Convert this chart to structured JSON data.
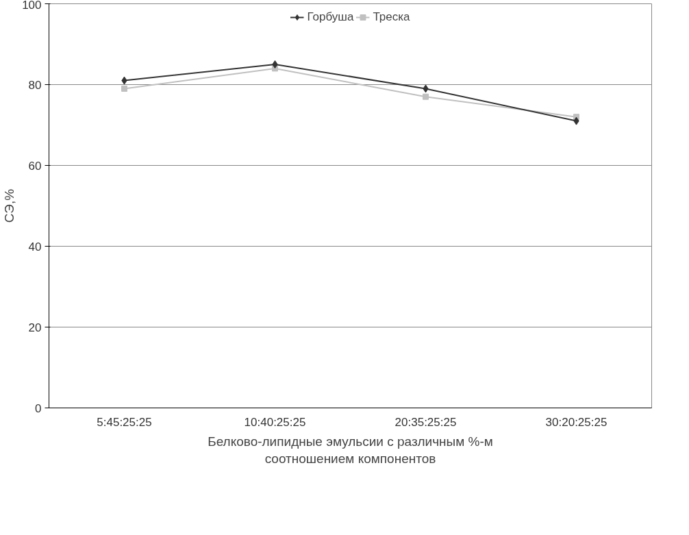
{
  "chart_data": {
    "type": "line",
    "xlabel": "Белково-липидные эмульсии с различным %-м\nсоотношением компонентов",
    "ylabel": "СЭ,%",
    "categories": [
      "5:45:25:25",
      "10:40:25:25",
      "20:35:25:25",
      "30:20:25:25"
    ],
    "series": [
      {
        "name": "Горбуша",
        "color": "#333333",
        "marker": "diamond",
        "values": [
          81,
          85,
          79,
          71
        ]
      },
      {
        "name": "Треска",
        "color": "#c0c0c0",
        "marker": "square",
        "values": [
          79,
          84,
          77,
          72
        ]
      }
    ],
    "ylim": [
      0,
      100
    ],
    "yticks": [
      0,
      20,
      40,
      60,
      80,
      100
    ],
    "grid": "y",
    "legend": "top",
    "line_style": "solid"
  }
}
